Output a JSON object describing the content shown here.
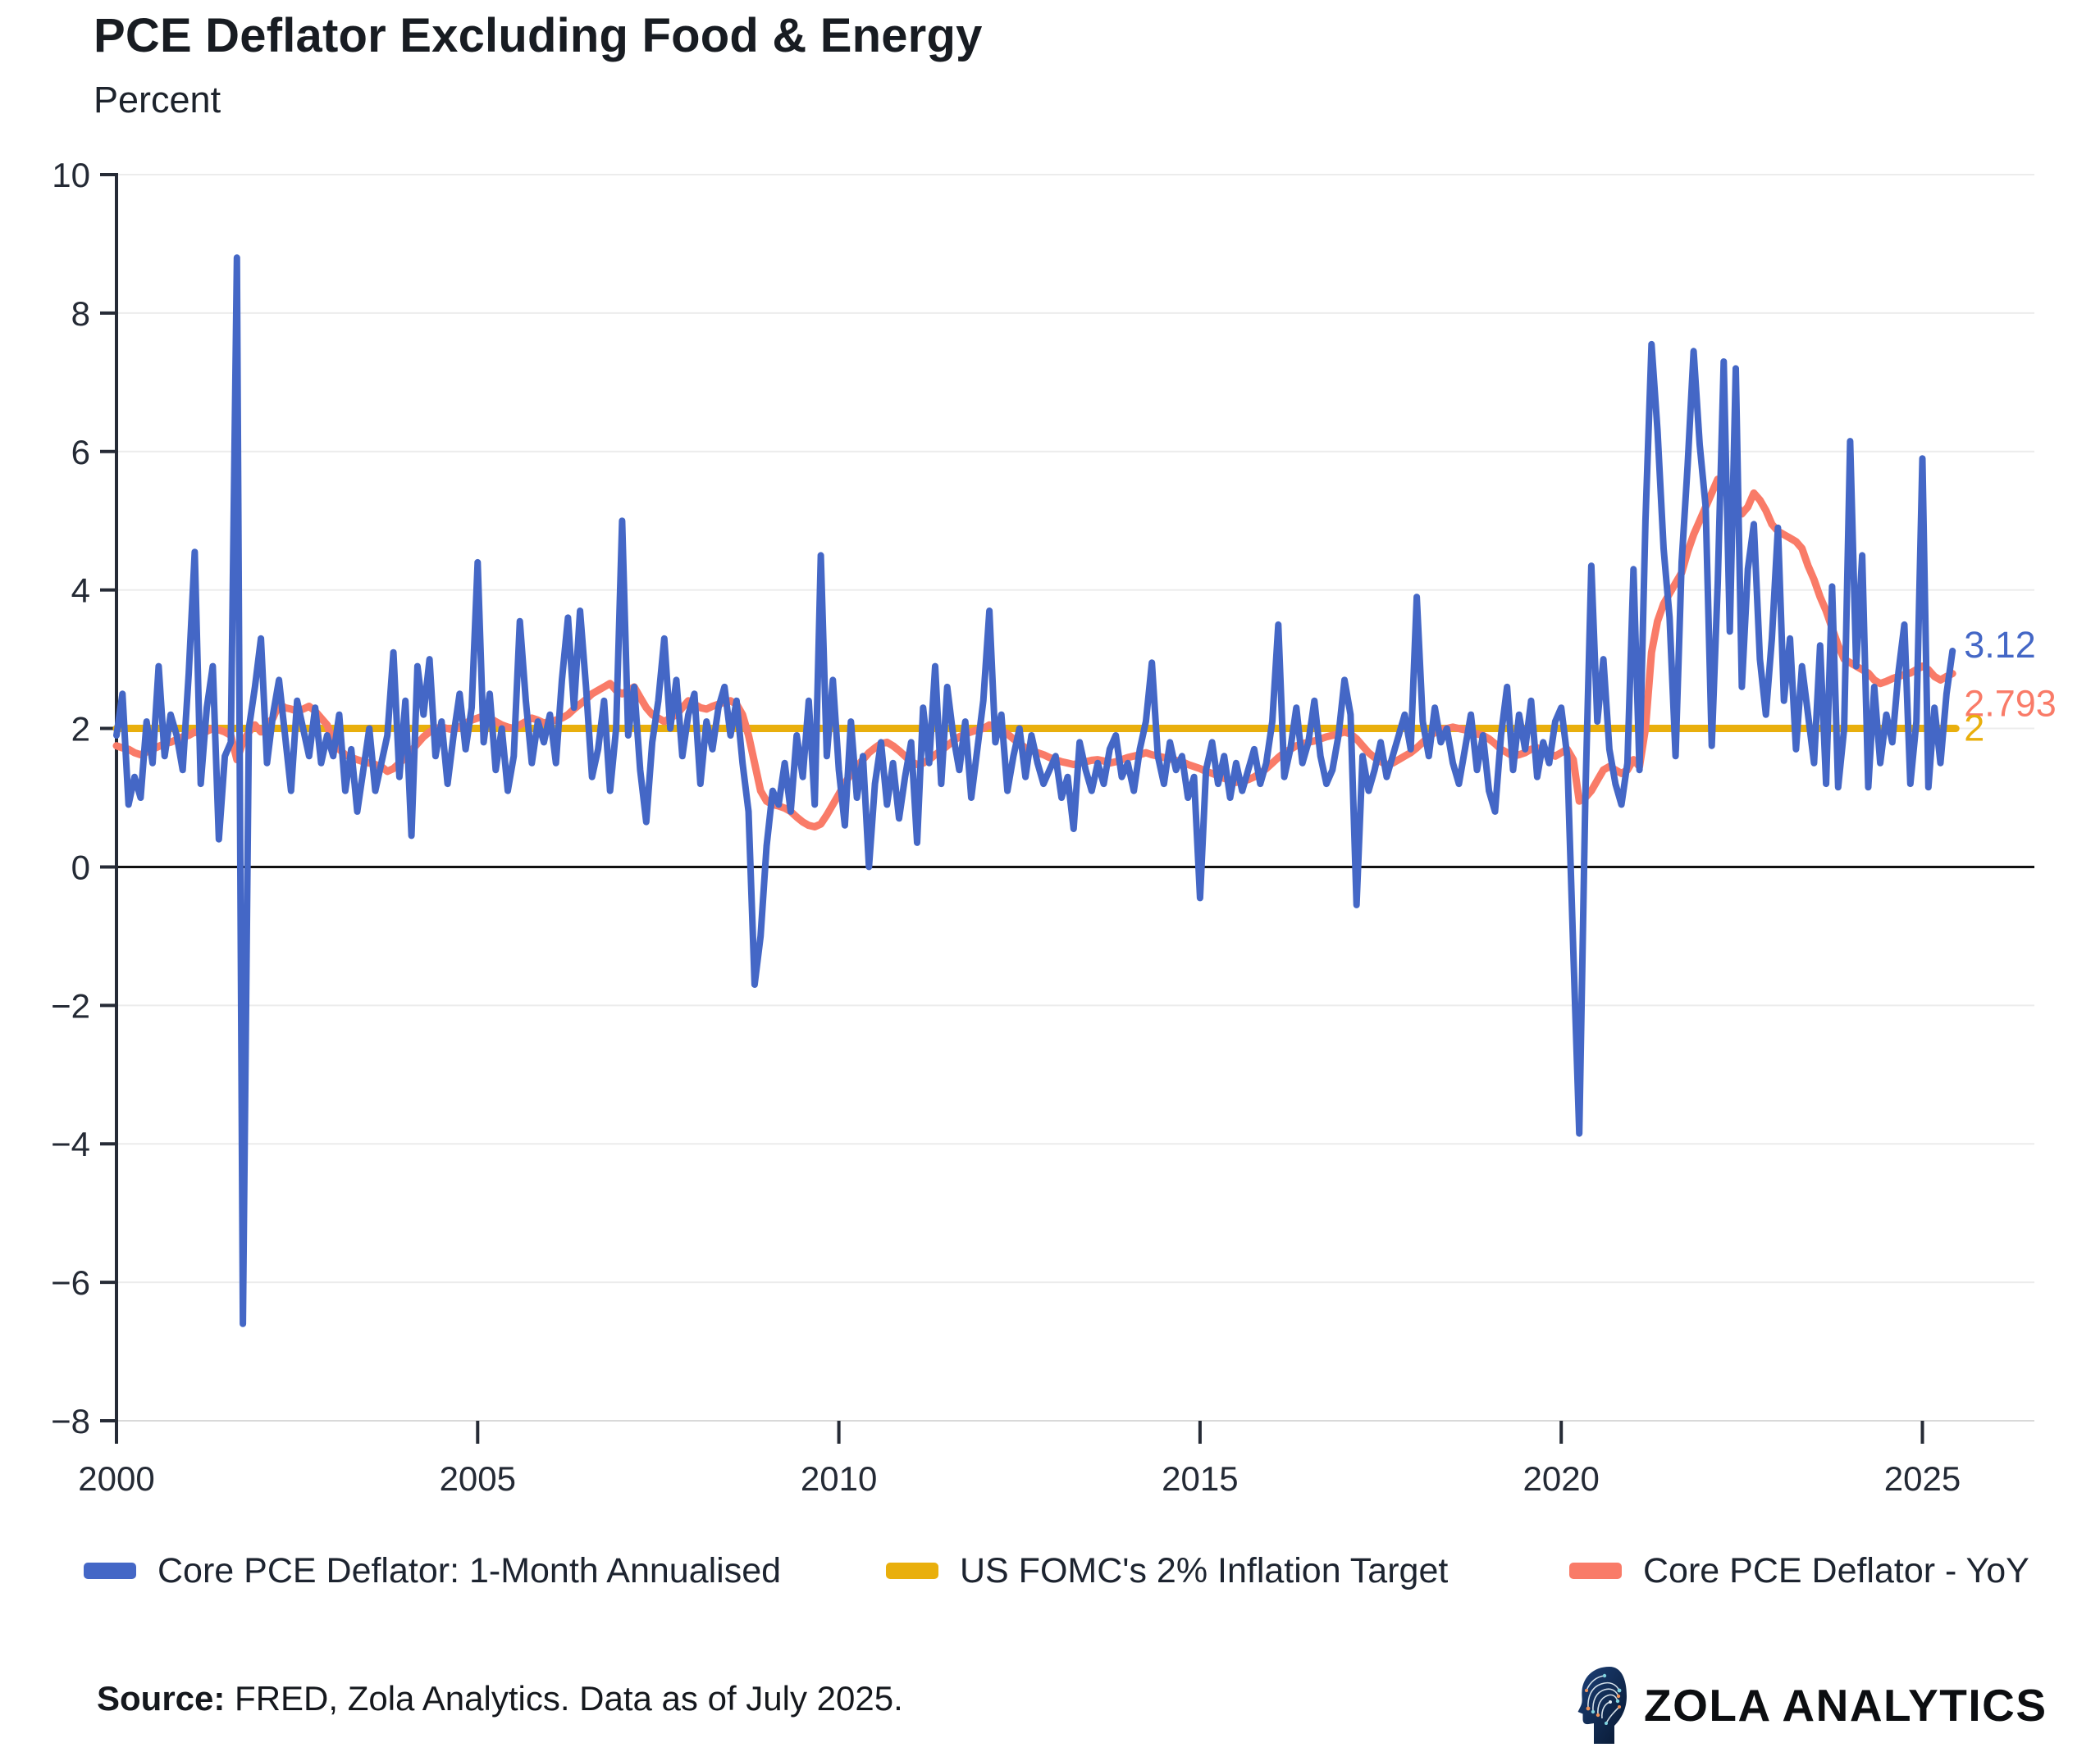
{
  "header": {
    "title": "PCE Deflator Excluding Food & Energy",
    "subtitle": "Percent"
  },
  "colors": {
    "blue_series": "#4467C6",
    "target_line": "#E9AF0D",
    "yoy_series": "#F97B68",
    "grid": "#ececec",
    "zero_line": "#111111",
    "left_spine": "#262b36",
    "bottom_spine": "#d9d9d9",
    "tick_text": "#242a35"
  },
  "chart_data": {
    "type": "line",
    "title": "PCE Deflator Excluding Food & Energy",
    "ylabel": "Percent",
    "ylim": [
      -8,
      10
    ],
    "xlim_years": [
      2000,
      2026.55
    ],
    "grid": "horizontal-only",
    "x_start": "2000-01",
    "frequency": "monthly",
    "x_end": "2025-06",
    "ytick_labels": [
      "10",
      "8",
      "6",
      "4",
      "2",
      "0",
      "−2",
      "−4",
      "−6",
      "−8"
    ],
    "ytick_values": [
      10,
      8,
      6,
      4,
      2,
      0,
      -2,
      -4,
      -6,
      -8
    ],
    "xtick_labels": [
      "2000",
      "2005",
      "2010",
      "2015",
      "2020",
      "2025"
    ],
    "xtick_values": [
      2000,
      2005,
      2010,
      2015,
      2020,
      2025
    ],
    "series": [
      {
        "name": "Core PCE Deflator: 1-Month Annualised",
        "color": "#4467C6",
        "last_value_label": "3.12",
        "values": [
          1.9,
          2.5,
          0.9,
          1.3,
          1.0,
          2.1,
          1.5,
          2.9,
          1.6,
          2.2,
          1.9,
          1.4,
          2.8,
          4.55,
          1.2,
          2.3,
          2.9,
          0.4,
          1.6,
          1.8,
          8.8,
          -6.6,
          2.0,
          2.6,
          3.3,
          1.5,
          2.2,
          2.7,
          1.9,
          1.1,
          2.4,
          2.0,
          1.6,
          2.3,
          1.5,
          1.9,
          1.6,
          2.2,
          1.1,
          1.7,
          0.8,
          1.4,
          2.0,
          1.1,
          1.5,
          1.9,
          3.1,
          1.3,
          2.4,
          0.45,
          2.9,
          2.2,
          3.0,
          1.6,
          2.1,
          1.2,
          1.9,
          2.5,
          1.7,
          2.3,
          4.4,
          1.8,
          2.5,
          1.4,
          2.0,
          1.1,
          1.6,
          3.55,
          2.4,
          1.5,
          2.1,
          1.8,
          2.2,
          1.5,
          2.7,
          3.6,
          2.3,
          3.7,
          2.6,
          1.3,
          1.7,
          2.4,
          1.1,
          2.0,
          5.0,
          1.9,
          2.6,
          1.4,
          0.65,
          1.8,
          2.4,
          3.3,
          2.0,
          2.7,
          1.6,
          2.2,
          2.5,
          1.2,
          2.1,
          1.7,
          2.3,
          2.6,
          1.9,
          2.4,
          1.5,
          0.8,
          -1.7,
          -1.0,
          0.3,
          1.1,
          0.9,
          1.5,
          0.8,
          1.9,
          1.3,
          2.4,
          0.9,
          4.5,
          1.6,
          2.7,
          1.4,
          0.6,
          2.1,
          1.0,
          1.6,
          0.0,
          1.2,
          1.8,
          0.9,
          1.5,
          0.7,
          1.3,
          1.8,
          0.35,
          2.3,
          1.5,
          2.9,
          1.2,
          2.6,
          1.9,
          1.4,
          2.1,
          1.0,
          1.7,
          2.4,
          3.7,
          1.8,
          2.2,
          1.1,
          1.6,
          2.0,
          1.3,
          1.9,
          1.5,
          1.2,
          1.4,
          1.6,
          1.0,
          1.3,
          0.55,
          1.8,
          1.4,
          1.1,
          1.5,
          1.2,
          1.7,
          1.9,
          1.3,
          1.5,
          1.1,
          1.7,
          2.1,
          2.95,
          1.6,
          1.2,
          1.8,
          1.4,
          1.6,
          1.0,
          1.3,
          -0.45,
          1.4,
          1.8,
          1.2,
          1.6,
          1.0,
          1.5,
          1.1,
          1.4,
          1.7,
          1.2,
          1.5,
          2.1,
          3.5,
          1.3,
          1.7,
          2.3,
          1.5,
          1.8,
          2.4,
          1.6,
          1.2,
          1.4,
          1.9,
          2.7,
          2.2,
          -0.55,
          1.6,
          1.1,
          1.4,
          1.8,
          1.3,
          1.6,
          1.9,
          2.2,
          1.7,
          3.9,
          2.1,
          1.6,
          2.3,
          1.8,
          2.0,
          1.5,
          1.2,
          1.7,
          2.2,
          1.4,
          1.9,
          1.1,
          0.8,
          1.9,
          2.6,
          1.4,
          2.2,
          1.7,
          2.4,
          1.3,
          1.8,
          1.5,
          2.1,
          2.3,
          1.6,
          -1.2,
          -3.85,
          1.0,
          4.35,
          2.1,
          3.0,
          1.7,
          1.2,
          0.9,
          1.5,
          4.3,
          1.4,
          5.0,
          7.55,
          6.3,
          4.6,
          3.6,
          1.6,
          4.4,
          5.8,
          7.45,
          6.1,
          5.2,
          1.75,
          4.1,
          7.3,
          3.4,
          7.2,
          2.6,
          4.3,
          4.95,
          3.0,
          2.2,
          3.3,
          4.9,
          2.4,
          3.3,
          1.7,
          2.9,
          2.2,
          1.5,
          3.2,
          1.2,
          4.05,
          1.15,
          2.0,
          6.15,
          2.9,
          4.5,
          1.15,
          2.6,
          1.5,
          2.2,
          1.8,
          2.8,
          3.5,
          1.2,
          2.1,
          5.9,
          1.15,
          2.3,
          1.5,
          2.5,
          3.12
        ]
      },
      {
        "name": "US FOMC's 2% Inflation Target",
        "color": "#E9AF0D",
        "last_value_label": "2",
        "constant": 2
      },
      {
        "name": "Core PCE Deflator - YoY",
        "color": "#F97B68",
        "last_value_label": "2.793",
        "values": [
          1.75,
          1.72,
          1.7,
          1.65,
          1.62,
          1.66,
          1.7,
          1.74,
          1.78,
          1.8,
          1.84,
          1.88,
          1.9,
          1.95,
          1.92,
          1.96,
          2.0,
          1.98,
          1.95,
          1.9,
          1.55,
          1.8,
          1.95,
          2.05,
          1.95,
          2.05,
          2.15,
          2.35,
          2.3,
          2.28,
          2.25,
          2.28,
          2.32,
          2.25,
          2.15,
          2.05,
          1.8,
          1.7,
          1.62,
          1.58,
          1.55,
          1.52,
          1.5,
          1.48,
          1.45,
          1.38,
          1.42,
          1.5,
          1.58,
          1.68,
          1.78,
          1.88,
          1.95,
          2.0,
          2.02,
          2.0,
          1.98,
          2.02,
          2.08,
          2.12,
          2.15,
          2.18,
          2.15,
          2.1,
          2.05,
          2.02,
          2.0,
          2.05,
          2.1,
          2.15,
          2.12,
          2.08,
          2.1,
          2.12,
          2.15,
          2.2,
          2.28,
          2.35,
          2.42,
          2.5,
          2.55,
          2.6,
          2.65,
          2.55,
          2.5,
          2.55,
          2.6,
          2.45,
          2.3,
          2.2,
          2.15,
          2.1,
          2.15,
          2.2,
          2.3,
          2.4,
          2.35,
          2.3,
          2.28,
          2.32,
          2.35,
          2.38,
          2.4,
          2.35,
          2.2,
          1.9,
          1.5,
          1.1,
          0.95,
          0.9,
          0.88,
          0.85,
          0.8,
          0.72,
          0.65,
          0.6,
          0.58,
          0.62,
          0.75,
          0.9,
          1.05,
          1.2,
          1.35,
          1.45,
          1.55,
          1.65,
          1.72,
          1.78,
          1.8,
          1.75,
          1.68,
          1.6,
          1.52,
          1.48,
          1.5,
          1.55,
          1.62,
          1.68,
          1.75,
          1.82,
          1.88,
          1.92,
          1.95,
          1.98,
          2.0,
          2.05,
          2.02,
          1.98,
          1.92,
          1.85,
          1.78,
          1.72,
          1.68,
          1.65,
          1.62,
          1.58,
          1.55,
          1.52,
          1.5,
          1.48,
          1.5,
          1.52,
          1.54,
          1.55,
          1.53,
          1.5,
          1.52,
          1.55,
          1.58,
          1.6,
          1.62,
          1.65,
          1.62,
          1.6,
          1.58,
          1.56,
          1.54,
          1.52,
          1.48,
          1.45,
          1.42,
          1.38,
          1.35,
          1.32,
          1.28,
          1.25,
          1.22,
          1.24,
          1.26,
          1.3,
          1.35,
          1.42,
          1.5,
          1.58,
          1.65,
          1.7,
          1.75,
          1.78,
          1.8,
          1.82,
          1.85,
          1.88,
          1.9,
          1.92,
          1.95,
          1.92,
          1.85,
          1.75,
          1.65,
          1.58,
          1.52,
          1.48,
          1.5,
          1.55,
          1.6,
          1.65,
          1.72,
          1.8,
          1.88,
          1.94,
          1.98,
          2.0,
          2.02,
          2.0,
          1.98,
          1.95,
          1.92,
          1.9,
          1.85,
          1.78,
          1.7,
          1.65,
          1.6,
          1.62,
          1.65,
          1.7,
          1.72,
          1.68,
          1.64,
          1.6,
          1.65,
          1.7,
          1.55,
          0.95,
          1.0,
          1.1,
          1.25,
          1.4,
          1.45,
          1.4,
          1.35,
          1.4,
          1.55,
          1.45,
          2.0,
          3.1,
          3.55,
          3.8,
          3.95,
          4.1,
          4.25,
          4.55,
          4.8,
          5.0,
          5.2,
          5.4,
          5.6,
          5.45,
          5.3,
          5.25,
          5.1,
          5.2,
          5.4,
          5.3,
          5.15,
          4.95,
          4.85,
          4.8,
          4.75,
          4.7,
          4.6,
          4.35,
          4.15,
          3.9,
          3.7,
          3.45,
          3.2,
          3.0,
          2.95,
          2.9,
          2.85,
          2.8,
          2.7,
          2.65,
          2.68,
          2.72,
          2.75,
          2.78,
          2.8,
          2.85,
          2.9,
          2.85,
          2.75,
          2.7,
          2.75,
          2.793
        ]
      }
    ]
  },
  "end_labels": {
    "blue": "3.12",
    "yoy": "2.793",
    "target": "2"
  },
  "legend": {
    "items": [
      {
        "label": "Core PCE Deflator: 1-Month Annualised",
        "color": "#4467C6"
      },
      {
        "label": "US FOMC's 2% Inflation Target",
        "color": "#E9AF0D"
      },
      {
        "label": "Core PCE Deflator - YoY",
        "color": "#F97B68"
      }
    ]
  },
  "footer": {
    "source_bold": "Source:",
    "source_rest": " FRED, Zola Analytics. Data as of July 2025.",
    "logo_text": "ZOLA ANALYTICS",
    "logo_icon": "circuit-head-icon"
  }
}
